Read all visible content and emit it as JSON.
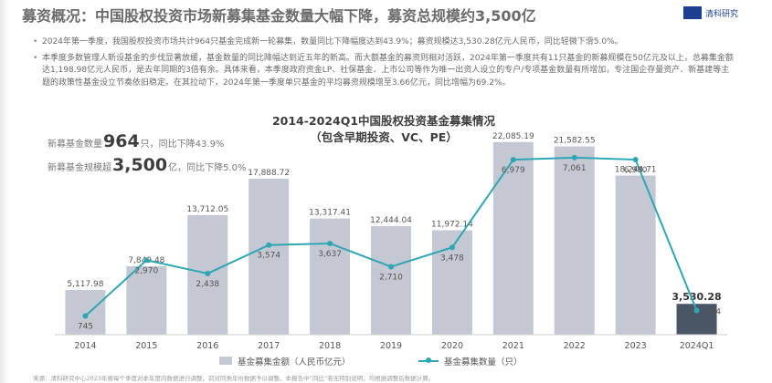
{
  "headline": "募资概况：中国股权投资市场新募集基金数量大幅下降，募资总规模约3,500亿",
  "logo_text": "清科研究",
  "bullets": [
    "2024年第一季度，我国股权投资市场共计964只基金完成新一轮募集，数量同比下降幅度达到43.9%；募资规模达3,530.28亿元人民币，同比轻微下滑5.0%。",
    "本季度多数管理人新设基金的步伐显著放缓，基金数量的同比降幅达到近五年的新高。而大额基金的募资则相对活跃，2024年第一季度共有11只基金的新募规模在50亿元及以上，总募集金额达1,198.98亿元人民币，是去年同期的3倍有余。具体来看，本季度政府资金LP、社保基金、上市公司等作为唯一出资人设立的专户/专项基金数量有所增加，专注国企存量资产、新基建等主题的政策性基金设立节奏依旧稳定。在其拉动下，2024年第一季度单只基金的平均募资规模增至3.66亿元，同比增幅为69.2%。"
  ],
  "kpis": {
    "count_prefix": "新募基金数量",
    "count_value": "964",
    "count_suffix": "只，同比下降43.9%",
    "size_prefix": "新募基金规模超",
    "size_value": "3,500",
    "size_suffix": "亿，同比下降5.0%"
  },
  "footnote": "来源：清科研究中心2023年报每个季度对本年度内数据进行调整，前对同类年份数据予以调整。本报告中“同比”若无特别说明，均根据调整后数据计算。",
  "colors": {
    "bar": "#c3c8d3",
    "bar_last": "#4a5565",
    "line": "#2fa6b3"
  },
  "chart_data": {
    "type": "bar+line",
    "title": "2014-2024Q1中国股权投资基金募集情况",
    "subtitle": "（包含早期投资、VC、PE）",
    "categories": [
      "2014",
      "2015",
      "2016",
      "2017",
      "2018",
      "2019",
      "2020",
      "2021",
      "2022",
      "2023",
      "2024Q1"
    ],
    "series": [
      {
        "name": "基金募集金额（人民币亿元）",
        "type": "bar",
        "axis": "left",
        "values": [
          5117.98,
          7849.48,
          13712.05,
          17888.72,
          13317.41,
          12444.04,
          11972.14,
          22085.19,
          21582.55,
          18244.71,
          3530.28
        ],
        "labels": [
          "5,117.98",
          "7,849.48",
          "13,712.05",
          "17,888.72",
          "13,317.41",
          "12,444.04",
          "11,972.14",
          "22,085.19",
          "21,582.55",
          "18,244.71",
          "3,530.28"
        ]
      },
      {
        "name": "基金募集数量（只）",
        "type": "line",
        "axis": "right",
        "values": [
          745,
          2970,
          2438,
          3574,
          3637,
          2710,
          3478,
          6979,
          7061,
          6980,
          964
        ],
        "labels": [
          "745",
          "2,970",
          "2,438",
          "3,574",
          "3,637",
          "2,710",
          "3,478",
          "6,979",
          "7,061",
          "6,980",
          "964"
        ]
      }
    ],
    "ylim_left": [
      0,
      23000
    ],
    "ylim_right": [
      0,
      8000
    ],
    "grid": false,
    "legend": "bottom"
  }
}
